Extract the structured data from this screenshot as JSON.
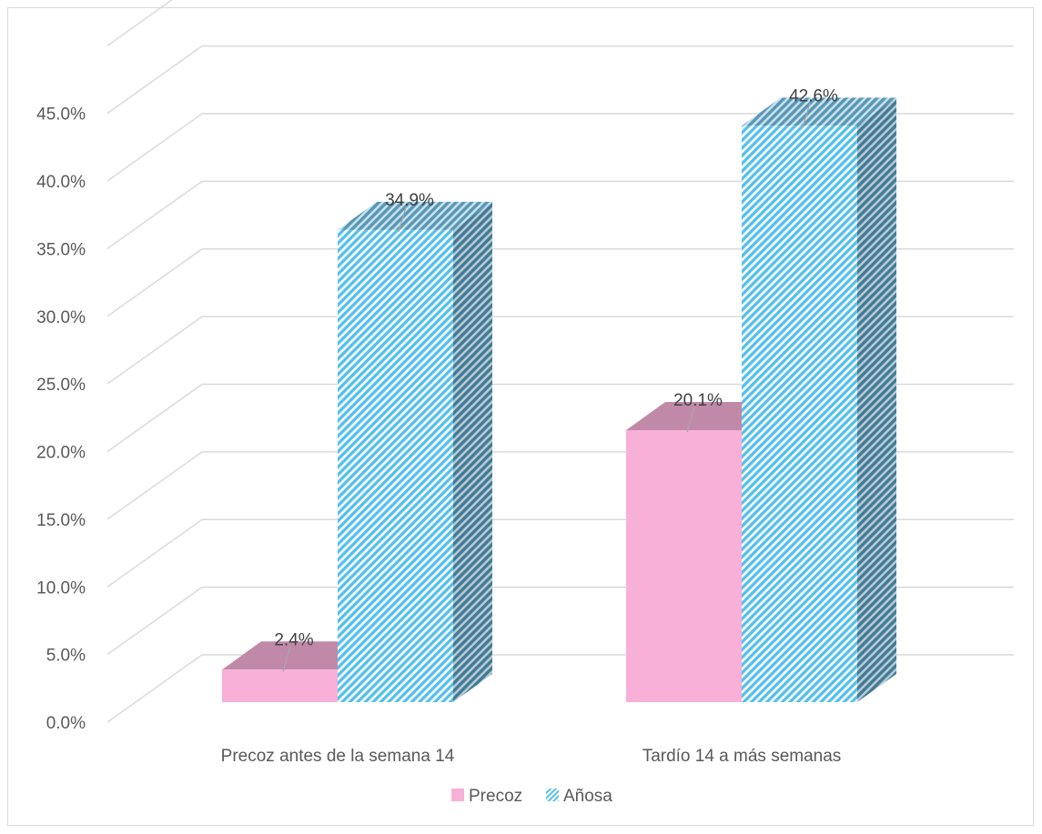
{
  "chart_data": {
    "type": "bar",
    "style": "3d-clustered-column",
    "categories": [
      "Precoz antes de la semana 14",
      "Tardío 14 a más semanas"
    ],
    "series": [
      {
        "name": "Precoz",
        "values": [
          2.4,
          20.1
        ],
        "labels": [
          "2.4%",
          "20.1%"
        ],
        "color": "#f8afd8",
        "pattern": "solid"
      },
      {
        "name": "Añosa",
        "values": [
          34.9,
          42.6
        ],
        "labels": [
          "34.9%",
          "42.6%"
        ],
        "color": "#9fd8f0",
        "pattern": "diagonal-stripes"
      }
    ],
    "yticks": [
      "0.0%",
      "5.0%",
      "10.0%",
      "15.0%",
      "20.0%",
      "25.0%",
      "30.0%",
      "35.0%",
      "40.0%",
      "45.0%"
    ],
    "ylim": [
      0,
      50
    ],
    "grid": true,
    "legend": "bottom"
  }
}
